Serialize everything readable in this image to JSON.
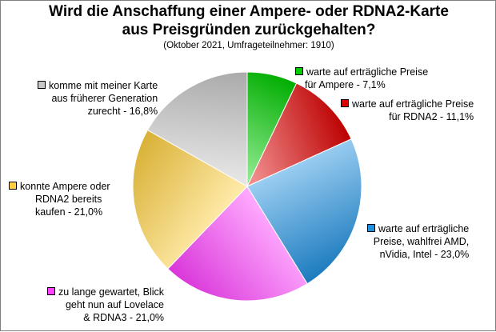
{
  "chart_data": {
    "type": "pie",
    "title_lines": [
      "Wird die Anschaffung einer Ampere- oder RDNA2-Karte",
      "aus Preisgründen zurückgehalten?"
    ],
    "subtitle": "(Oktober 2021, Umfrageteilnehmer: 1910)",
    "slices": [
      {
        "label_lines": [
          "warte auf erträgliche Preise",
          "für Ampere - 7,1%"
        ],
        "value": 7.1,
        "color": "#00cc00"
      },
      {
        "label_lines": [
          "warte auf erträgliche Preise",
          "für RDNA2 - 11,1%"
        ],
        "value": 11.1,
        "color": "#dd0000"
      },
      {
        "label_lines": [
          "warte auf erträgliche",
          "Preise, wahlfrei AMD,",
          "nVidia, Intel - 23,0%"
        ],
        "value": 23.0,
        "color": "#1e90e0"
      },
      {
        "label_lines": [
          "zu lange gewartet, Blick",
          "geht nun auf Lovelace",
          "& RDNA3 - 21,0%"
        ],
        "value": 21.0,
        "color": "#ff40ff"
      },
      {
        "label_lines": [
          "konnte Ampere oder",
          "RDNA2 bereits",
          "kaufen - 21,0%"
        ],
        "value": 21.0,
        "color": "#ffd040"
      },
      {
        "label_lines": [
          "komme mit meiner Karte",
          "aus früherer Generation",
          "zurecht - 16,8%"
        ],
        "value": 16.8,
        "color": "#c8c8c8"
      }
    ]
  }
}
